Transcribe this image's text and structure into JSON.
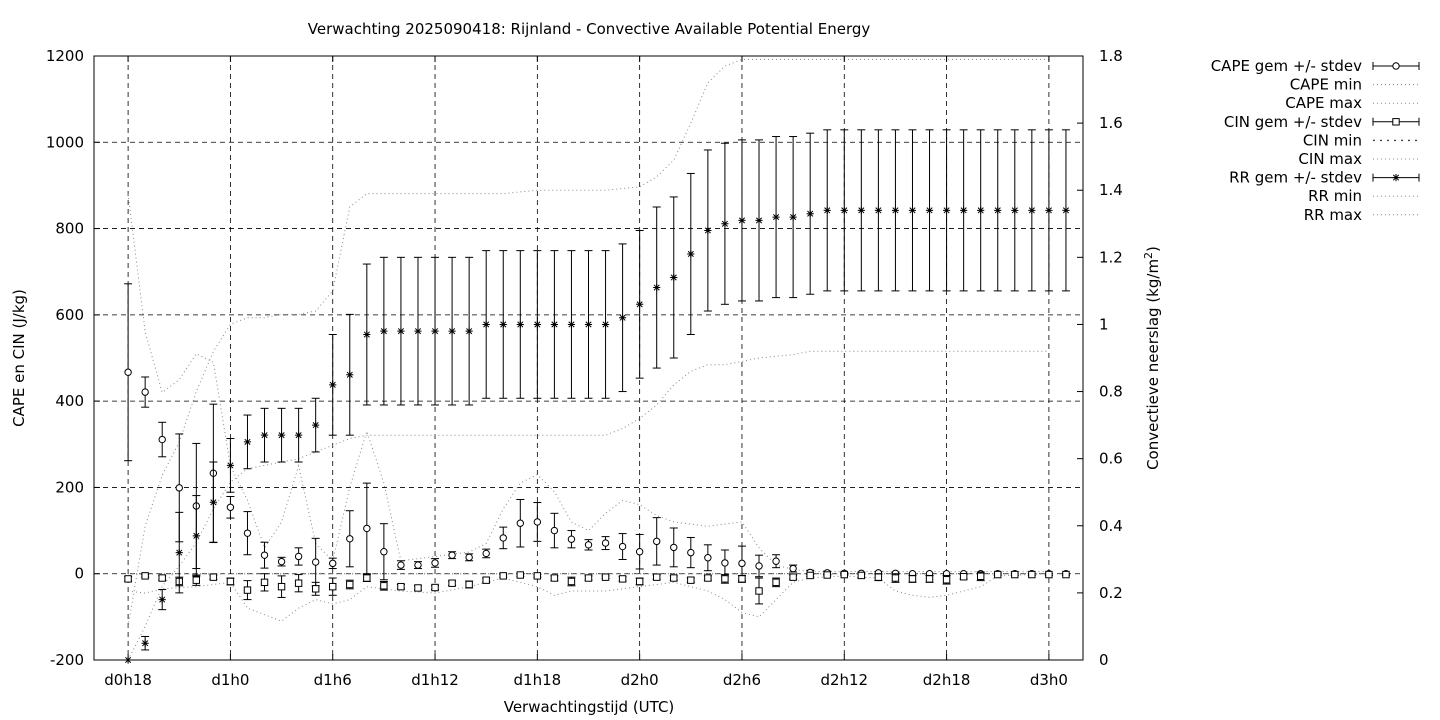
{
  "chart_data": {
    "type": "line",
    "title": "Verwachting 2025090418: Rijnland - Convective Available Potential Energy",
    "xlabel": "Verwachtingstijd (UTC)",
    "ylabel": "CAPE en CIN (J/kg)",
    "y2label_main": "Convectieve neerslag (kg/m",
    "y2label_sup": "2",
    "y2label_end": ")",
    "x_step_hours": 1,
    "x_start_hour": 18,
    "xlim": [
      16,
      74
    ],
    "ylim": [
      -200,
      1200
    ],
    "y2lim": [
      0,
      1.8
    ],
    "grid": true,
    "legend_position": "outside-right",
    "x_ticks": [
      {
        "hour": 18,
        "label": "d0h18"
      },
      {
        "hour": 24,
        "label": "d1h0"
      },
      {
        "hour": 30,
        "label": "d1h6"
      },
      {
        "hour": 36,
        "label": "d1h12"
      },
      {
        "hour": 42,
        "label": "d1h18"
      },
      {
        "hour": 48,
        "label": "d2h0"
      },
      {
        "hour": 54,
        "label": "d2h6"
      },
      {
        "hour": 60,
        "label": "d2h12"
      },
      {
        "hour": 66,
        "label": "d2h18"
      },
      {
        "hour": 72,
        "label": "d3h0"
      }
    ],
    "y_ticks": [
      "-200",
      "0",
      "200",
      "400",
      "600",
      "800",
      "1000",
      "1200"
    ],
    "y2_ticks": [
      "0",
      "0.2",
      "0.4",
      "0.6",
      "0.8",
      "1",
      "1.2",
      "1.4",
      "1.6",
      "1.8"
    ],
    "legend": [
      {
        "label": "CAPE gem +/- stdev",
        "style": "errorbar",
        "marker": "circle"
      },
      {
        "label": "CAPE min",
        "style": "dotted"
      },
      {
        "label": "CAPE max",
        "style": "dotted"
      },
      {
        "label": "CIN gem +/- stdev",
        "style": "errorbar",
        "marker": "square"
      },
      {
        "label": "CIN min",
        "style": "dotted-bold"
      },
      {
        "label": "CIN max",
        "style": "dotted"
      },
      {
        "label": "RR gem +/- stdev",
        "style": "errorbar",
        "marker": "star"
      },
      {
        "label": "RR min",
        "style": "dotted"
      },
      {
        "label": "RR max",
        "style": "dotted"
      }
    ],
    "series": [
      {
        "name": "CAPE gem +/- stdev",
        "axis": "y1",
        "marker": "circle",
        "mean": [
          467,
          421,
          311,
          199,
          157,
          233,
          154,
          94,
          43,
          28,
          40,
          27,
          24,
          81,
          105,
          51,
          20,
          20,
          25,
          43,
          38,
          47,
          83,
          117,
          120,
          100,
          80,
          67,
          71,
          63,
          51,
          75,
          61,
          49,
          37,
          25,
          24,
          18,
          29,
          12,
          3,
          2,
          1,
          1,
          2,
          1,
          0,
          0,
          0,
          0,
          0,
          0,
          0,
          0,
          0,
          0
        ],
        "sd": [
          205,
          35,
          40,
          125,
          145,
          160,
          25,
          50,
          30,
          10,
          20,
          55,
          12,
          65,
          105,
          65,
          10,
          8,
          10,
          8,
          8,
          10,
          25,
          55,
          45,
          40,
          20,
          12,
          15,
          30,
          40,
          55,
          45,
          35,
          30,
          30,
          40,
          25,
          15,
          8,
          5,
          4,
          2,
          2,
          3,
          2,
          0,
          0,
          0,
          0,
          0,
          0,
          0,
          0,
          0,
          0
        ]
      },
      {
        "name": "CIN gem +/- stdev",
        "axis": "y1",
        "marker": "square",
        "mean": [
          -12,
          -5,
          -10,
          -18,
          -15,
          -8,
          -18,
          -38,
          -20,
          -30,
          -22,
          -35,
          -30,
          -25,
          -10,
          -28,
          -30,
          -33,
          -32,
          -22,
          -25,
          -15,
          -5,
          -3,
          -5,
          -10,
          -18,
          -10,
          -8,
          -12,
          -18,
          -8,
          -10,
          -15,
          -10,
          -12,
          -12,
          -40,
          -20,
          -8,
          -4,
          -3,
          -2,
          -4,
          -8,
          -10,
          -12,
          -12,
          -14,
          -7,
          -6,
          -2,
          -2,
          -2,
          -2,
          -2
        ],
        "sd": [
          5,
          3,
          5,
          10,
          12,
          5,
          8,
          22,
          20,
          25,
          20,
          15,
          20,
          10,
          8,
          10,
          5,
          5,
          5,
          5,
          8,
          5,
          3,
          3,
          3,
          5,
          10,
          5,
          3,
          5,
          8,
          5,
          5,
          5,
          5,
          10,
          8,
          30,
          10,
          5,
          3,
          2,
          2,
          5,
          8,
          10,
          8,
          8,
          10,
          5,
          10,
          2,
          2,
          2,
          2,
          2
        ]
      },
      {
        "name": "RR gem +/- stdev",
        "axis": "y2",
        "marker": "star",
        "mean": [
          0,
          0.05,
          0.18,
          0.32,
          0.37,
          0.47,
          0.58,
          0.65,
          0.67,
          0.67,
          0.67,
          0.7,
          0.82,
          0.85,
          0.97,
          0.98,
          0.98,
          0.98,
          0.98,
          0.98,
          0.98,
          1,
          1,
          1,
          1,
          1,
          1,
          1,
          1,
          1.02,
          1.06,
          1.11,
          1.14,
          1.21,
          1.28,
          1.3,
          1.31,
          1.31,
          1.32,
          1.32,
          1.33,
          1.34,
          1.34,
          1.34,
          1.34,
          1.34,
          1.34,
          1.34,
          1.34,
          1.34,
          1.34,
          1.34,
          1.34,
          1.34,
          1.34,
          1.34
        ],
        "sd": [
          0,
          0.02,
          0.03,
          0.12,
          0.12,
          0.12,
          0.08,
          0.08,
          0.08,
          0.08,
          0.08,
          0.08,
          0.15,
          0.18,
          0.21,
          0.22,
          0.22,
          0.22,
          0.22,
          0.22,
          0.22,
          0.22,
          0.22,
          0.22,
          0.22,
          0.22,
          0.22,
          0.22,
          0.22,
          0.22,
          0.22,
          0.24,
          0.24,
          0.24,
          0.24,
          0.24,
          0.24,
          0.24,
          0.24,
          0.24,
          0.24,
          0.24,
          0.24,
          0.24,
          0.24,
          0.24,
          0.24,
          0.24,
          0.24,
          0.24,
          0.24,
          0.24,
          0.24,
          0.24,
          0.24,
          0.24
        ]
      },
      {
        "name": "CAPE min",
        "axis": "y1",
        "style": "dotted",
        "points": [
          [
            18,
            0
          ],
          [
            20,
            0
          ],
          [
            22,
            0
          ],
          [
            24,
            0
          ],
          [
            26,
            0
          ],
          [
            28,
            0
          ],
          [
            30,
            0
          ],
          [
            40,
            0
          ],
          [
            50,
            0
          ],
          [
            60,
            0
          ],
          [
            72,
            0
          ]
        ]
      },
      {
        "name": "CAPE max",
        "axis": "y1",
        "style": "dotted",
        "points": [
          [
            18,
            880
          ],
          [
            19,
            560
          ],
          [
            20,
            420
          ],
          [
            21,
            450
          ],
          [
            22,
            510
          ],
          [
            23,
            490
          ],
          [
            24,
            250
          ],
          [
            25,
            170
          ],
          [
            26,
            60
          ],
          [
            27,
            120
          ],
          [
            28,
            250
          ],
          [
            29,
            70
          ],
          [
            30,
            30
          ],
          [
            31,
            200
          ],
          [
            32,
            330
          ],
          [
            33,
            210
          ],
          [
            34,
            30
          ],
          [
            36,
            40
          ],
          [
            38,
            50
          ],
          [
            39,
            70
          ],
          [
            40,
            150
          ],
          [
            41,
            210
          ],
          [
            42,
            230
          ],
          [
            43,
            190
          ],
          [
            44,
            120
          ],
          [
            45,
            100
          ],
          [
            46,
            140
          ],
          [
            47,
            170
          ],
          [
            48,
            160
          ],
          [
            49,
            135
          ],
          [
            50,
            120
          ],
          [
            52,
            110
          ],
          [
            54,
            120
          ],
          [
            55,
            60
          ],
          [
            56,
            20
          ],
          [
            57,
            10
          ],
          [
            58,
            5
          ],
          [
            72,
            5
          ]
        ]
      },
      {
        "name": "CIN min",
        "axis": "y1",
        "style": "dotted",
        "points": [
          [
            18,
            -40
          ],
          [
            19,
            -45
          ],
          [
            20,
            -35
          ],
          [
            22,
            -30
          ],
          [
            24,
            -20
          ],
          [
            25,
            -80
          ],
          [
            26,
            -95
          ],
          [
            27,
            -110
          ],
          [
            28,
            -80
          ],
          [
            29,
            -60
          ],
          [
            30,
            -70
          ],
          [
            31,
            -60
          ],
          [
            32,
            -30
          ],
          [
            34,
            -40
          ],
          [
            36,
            -45
          ],
          [
            38,
            -30
          ],
          [
            40,
            -10
          ],
          [
            41,
            -20
          ],
          [
            42,
            -30
          ],
          [
            43,
            -50
          ],
          [
            44,
            -40
          ],
          [
            46,
            -40
          ],
          [
            48,
            -30
          ],
          [
            50,
            -20
          ],
          [
            52,
            -40
          ],
          [
            53,
            -60
          ],
          [
            54,
            -90
          ],
          [
            55,
            -100
          ],
          [
            56,
            -60
          ],
          [
            57,
            -20
          ],
          [
            58,
            -10
          ],
          [
            60,
            -5
          ],
          [
            62,
            -10
          ],
          [
            63,
            -40
          ],
          [
            64,
            -50
          ],
          [
            65,
            -55
          ],
          [
            66,
            -50
          ],
          [
            67,
            -40
          ],
          [
            68,
            -30
          ],
          [
            69,
            -5
          ],
          [
            72,
            0
          ]
        ]
      },
      {
        "name": "CIN max",
        "axis": "y1",
        "style": "dotted",
        "points": [
          [
            18,
            0
          ],
          [
            72,
            0
          ]
        ]
      },
      {
        "name": "RR min",
        "axis": "y2",
        "style": "dotted",
        "points": [
          [
            18,
            0
          ],
          [
            19,
            0.1
          ],
          [
            20,
            0.22
          ],
          [
            21,
            0.28
          ],
          [
            22,
            0.35
          ],
          [
            23,
            0.45
          ],
          [
            24,
            0.53
          ],
          [
            25,
            0.57
          ],
          [
            26,
            0.58
          ],
          [
            27,
            0.59
          ],
          [
            28,
            0.6
          ],
          [
            29,
            0.62
          ],
          [
            30,
            0.64
          ],
          [
            31,
            0.66
          ],
          [
            32,
            0.67
          ],
          [
            34,
            0.67
          ],
          [
            36,
            0.67
          ],
          [
            40,
            0.67
          ],
          [
            44,
            0.67
          ],
          [
            46,
            0.67
          ],
          [
            47,
            0.69
          ],
          [
            48,
            0.72
          ],
          [
            49,
            0.76
          ],
          [
            50,
            0.82
          ],
          [
            51,
            0.86
          ],
          [
            52,
            0.88
          ],
          [
            53,
            0.88
          ],
          [
            54,
            0.89
          ],
          [
            55,
            0.9
          ],
          [
            57,
            0.91
          ],
          [
            58,
            0.92
          ],
          [
            60,
            0.92
          ],
          [
            66,
            0.92
          ],
          [
            72,
            0.92
          ]
        ]
      },
      {
        "name": "RR max",
        "axis": "y2",
        "style": "dotted",
        "points": [
          [
            18,
            0.1
          ],
          [
            19,
            0.4
          ],
          [
            20,
            0.55
          ],
          [
            21,
            0.65
          ],
          [
            22,
            0.8
          ],
          [
            23,
            0.92
          ],
          [
            24,
            1
          ],
          [
            25,
            1.02
          ],
          [
            26,
            1.02
          ],
          [
            27,
            1.03
          ],
          [
            28,
            1.03
          ],
          [
            29,
            1.04
          ],
          [
            30,
            1.1
          ],
          [
            31,
            1.35
          ],
          [
            32,
            1.39
          ],
          [
            34,
            1.39
          ],
          [
            36,
            1.39
          ],
          [
            38,
            1.39
          ],
          [
            40,
            1.39
          ],
          [
            42,
            1.4
          ],
          [
            44,
            1.4
          ],
          [
            46,
            1.4
          ],
          [
            48,
            1.41
          ],
          [
            49,
            1.44
          ],
          [
            50,
            1.49
          ],
          [
            51,
            1.6
          ],
          [
            52,
            1.72
          ],
          [
            53,
            1.77
          ],
          [
            54,
            1.79
          ],
          [
            56,
            1.79
          ],
          [
            60,
            1.79
          ],
          [
            66,
            1.79
          ],
          [
            72,
            1.79
          ]
        ]
      }
    ]
  }
}
